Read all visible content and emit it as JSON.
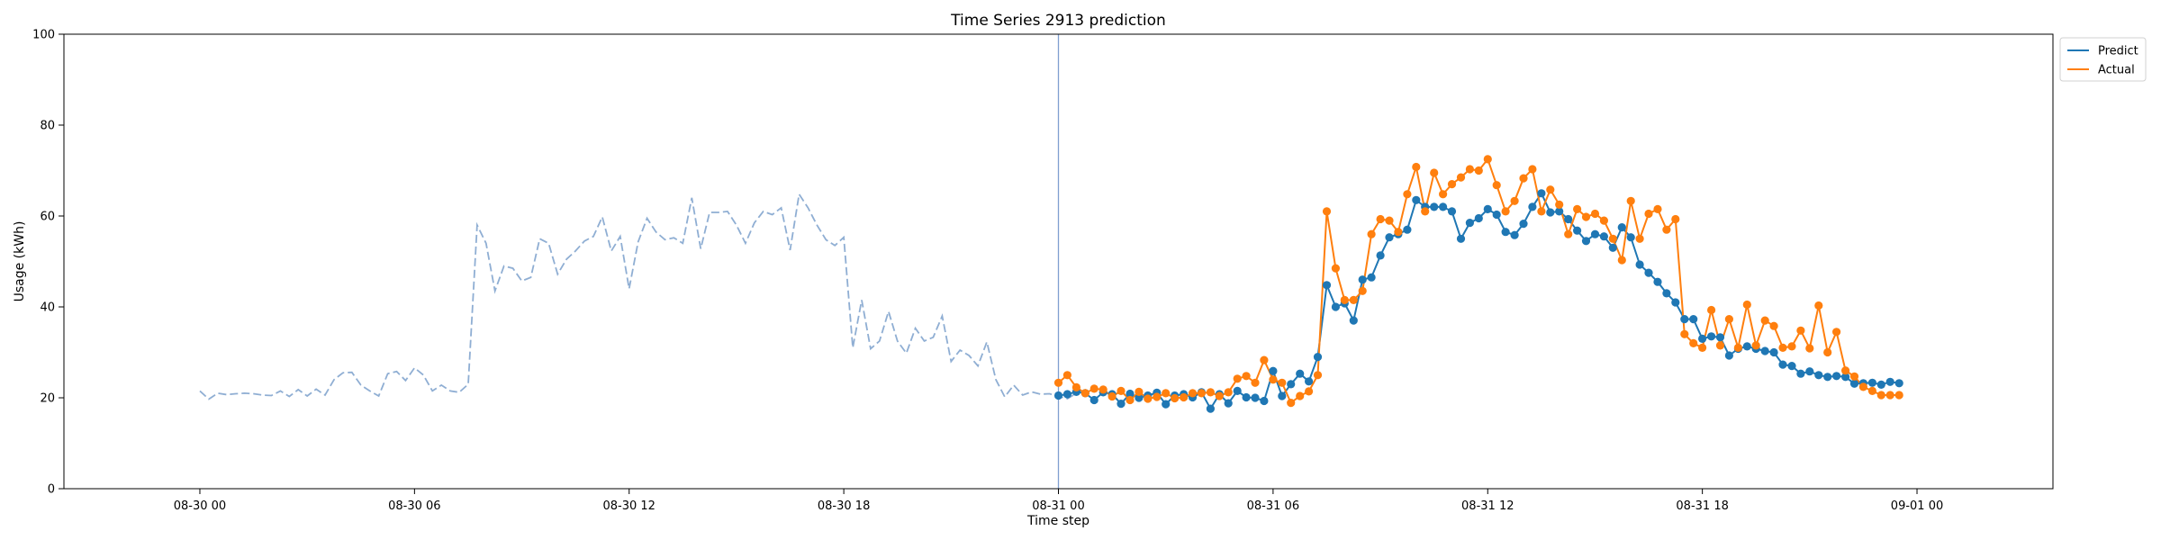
{
  "chart_data": {
    "type": "line",
    "title": "Time Series 2913 prediction",
    "xlabel": "Time step",
    "ylabel": "Usage (kWh)",
    "ylim": [
      0,
      100
    ],
    "yticks": [
      0,
      20,
      40,
      60,
      80,
      100
    ],
    "x_range_hours": [
      -3.8,
      51.8
    ],
    "xticks": [
      {
        "hour": 0,
        "label": "08-30 00"
      },
      {
        "hour": 6,
        "label": "08-30 06"
      },
      {
        "hour": 12,
        "label": "08-30 12"
      },
      {
        "hour": 18,
        "label": "08-30 18"
      },
      {
        "hour": 24,
        "label": "08-31 00"
      },
      {
        "hour": 30,
        "label": "08-31 06"
      },
      {
        "hour": 36,
        "label": "08-31 12"
      },
      {
        "hour": 42,
        "label": "08-31 18"
      },
      {
        "hour": 48,
        "label": "09-01 00"
      }
    ],
    "time_step_hours": 0.25,
    "history": {
      "start_hour": 0,
      "values": [
        21.5,
        19.7,
        21.0,
        20.7,
        20.9,
        21.0,
        20.9,
        20.6,
        20.5,
        21.5,
        20.3,
        21.8,
        20.4,
        21.9,
        20.6,
        24.0,
        25.5,
        25.6,
        22.8,
        21.5,
        20.4,
        25.3,
        25.8,
        23.8,
        26.6,
        25.0,
        21.5,
        22.8,
        21.5,
        21.2,
        23.0,
        58.0,
        54.0,
        43.5,
        49.0,
        48.5,
        45.7,
        46.5,
        55.0,
        54.0,
        47.2,
        50.5,
        52.3,
        54.5,
        55.5,
        59.8,
        52.3,
        55.5,
        44.0,
        54.3,
        59.5,
        56.5,
        54.8,
        55.2,
        54.0,
        64.0,
        52.8,
        60.8,
        60.8,
        61.0,
        58.0,
        54.0,
        58.5,
        61.0,
        60.3,
        61.8,
        52.5,
        64.8,
        61.8,
        58.0,
        54.8,
        53.5,
        55.3,
        31.0,
        41.5,
        30.8,
        32.5,
        39.0,
        32.5,
        29.8,
        35.3,
        32.5,
        33.3,
        38.0,
        28.0,
        30.5,
        29.3,
        27.0,
        32.3,
        24.0,
        20.2,
        22.8,
        20.6,
        21.3,
        20.8,
        20.9,
        20.3,
        19.8,
        21.0
      ]
    },
    "forecast_start_hour": 24,
    "series": [
      {
        "name": "Predict",
        "color": "#1f77b4",
        "values": [
          20.5,
          20.8,
          21.3,
          21.0,
          19.5,
          21.2,
          20.8,
          18.7,
          20.9,
          20.0,
          20.5,
          21.1,
          18.6,
          20.5,
          20.8,
          20.1,
          21.2,
          17.6,
          20.8,
          18.8,
          21.5,
          20.1,
          20.0,
          19.3,
          25.9,
          20.4,
          23.0,
          25.3,
          23.6,
          29.0,
          44.8,
          40.0,
          40.8,
          37.0,
          46.0,
          46.5,
          51.3,
          55.3,
          56.0,
          57.0,
          63.5,
          62.0,
          62.0,
          62.0,
          61.0,
          55.0,
          58.5,
          59.5,
          61.5,
          60.3,
          56.5,
          55.8,
          58.3,
          62.0,
          65.0,
          60.8,
          61.0,
          59.3,
          56.8,
          54.5,
          56.0,
          55.5,
          53.0,
          57.5,
          55.3,
          49.3,
          47.5,
          45.5,
          43.0,
          41.0,
          37.3,
          37.3,
          33.0,
          33.5,
          33.3,
          29.3,
          30.8,
          31.3,
          30.8,
          30.3,
          30.0,
          27.3,
          27.0,
          25.3,
          25.8,
          25.0,
          24.6,
          24.8,
          24.6,
          23.1,
          23.2,
          23.3,
          22.9,
          23.5,
          23.2
        ]
      },
      {
        "name": "Actual",
        "color": "#ff7f0e",
        "values": [
          23.3,
          25.0,
          22.3,
          21.0,
          22.0,
          21.8,
          20.3,
          21.5,
          19.5,
          21.3,
          19.8,
          20.2,
          21.0,
          19.9,
          20.1,
          21.0,
          21.0,
          21.2,
          20.4,
          21.2,
          24.2,
          24.8,
          23.3,
          28.3,
          24.0,
          23.3,
          18.9,
          20.4,
          21.4,
          25.0,
          61.0,
          48.5,
          41.5,
          41.5,
          43.5,
          56.0,
          59.3,
          59.0,
          56.5,
          64.8,
          70.8,
          61.0,
          69.5,
          64.8,
          67.0,
          68.5,
          70.3,
          70.0,
          72.5,
          66.8,
          61.0,
          63.3,
          68.3,
          70.3,
          61.0,
          65.8,
          62.5,
          56.0,
          61.5,
          59.8,
          60.5,
          59.0,
          55.0,
          50.3,
          63.3,
          55.0,
          60.5,
          61.5,
          57.0,
          59.3,
          34.0,
          32.0,
          31.0,
          39.3,
          31.5,
          37.3,
          31.0,
          40.5,
          31.5,
          37.0,
          35.8,
          31.0,
          31.3,
          34.8,
          30.9,
          40.3,
          30.0,
          34.5,
          26.0,
          24.7,
          22.4,
          21.5,
          20.6,
          20.6,
          20.6
        ]
      }
    ],
    "legend": {
      "placement": "top-right outside",
      "entries": [
        "Predict",
        "Actual"
      ]
    },
    "grid": false
  }
}
